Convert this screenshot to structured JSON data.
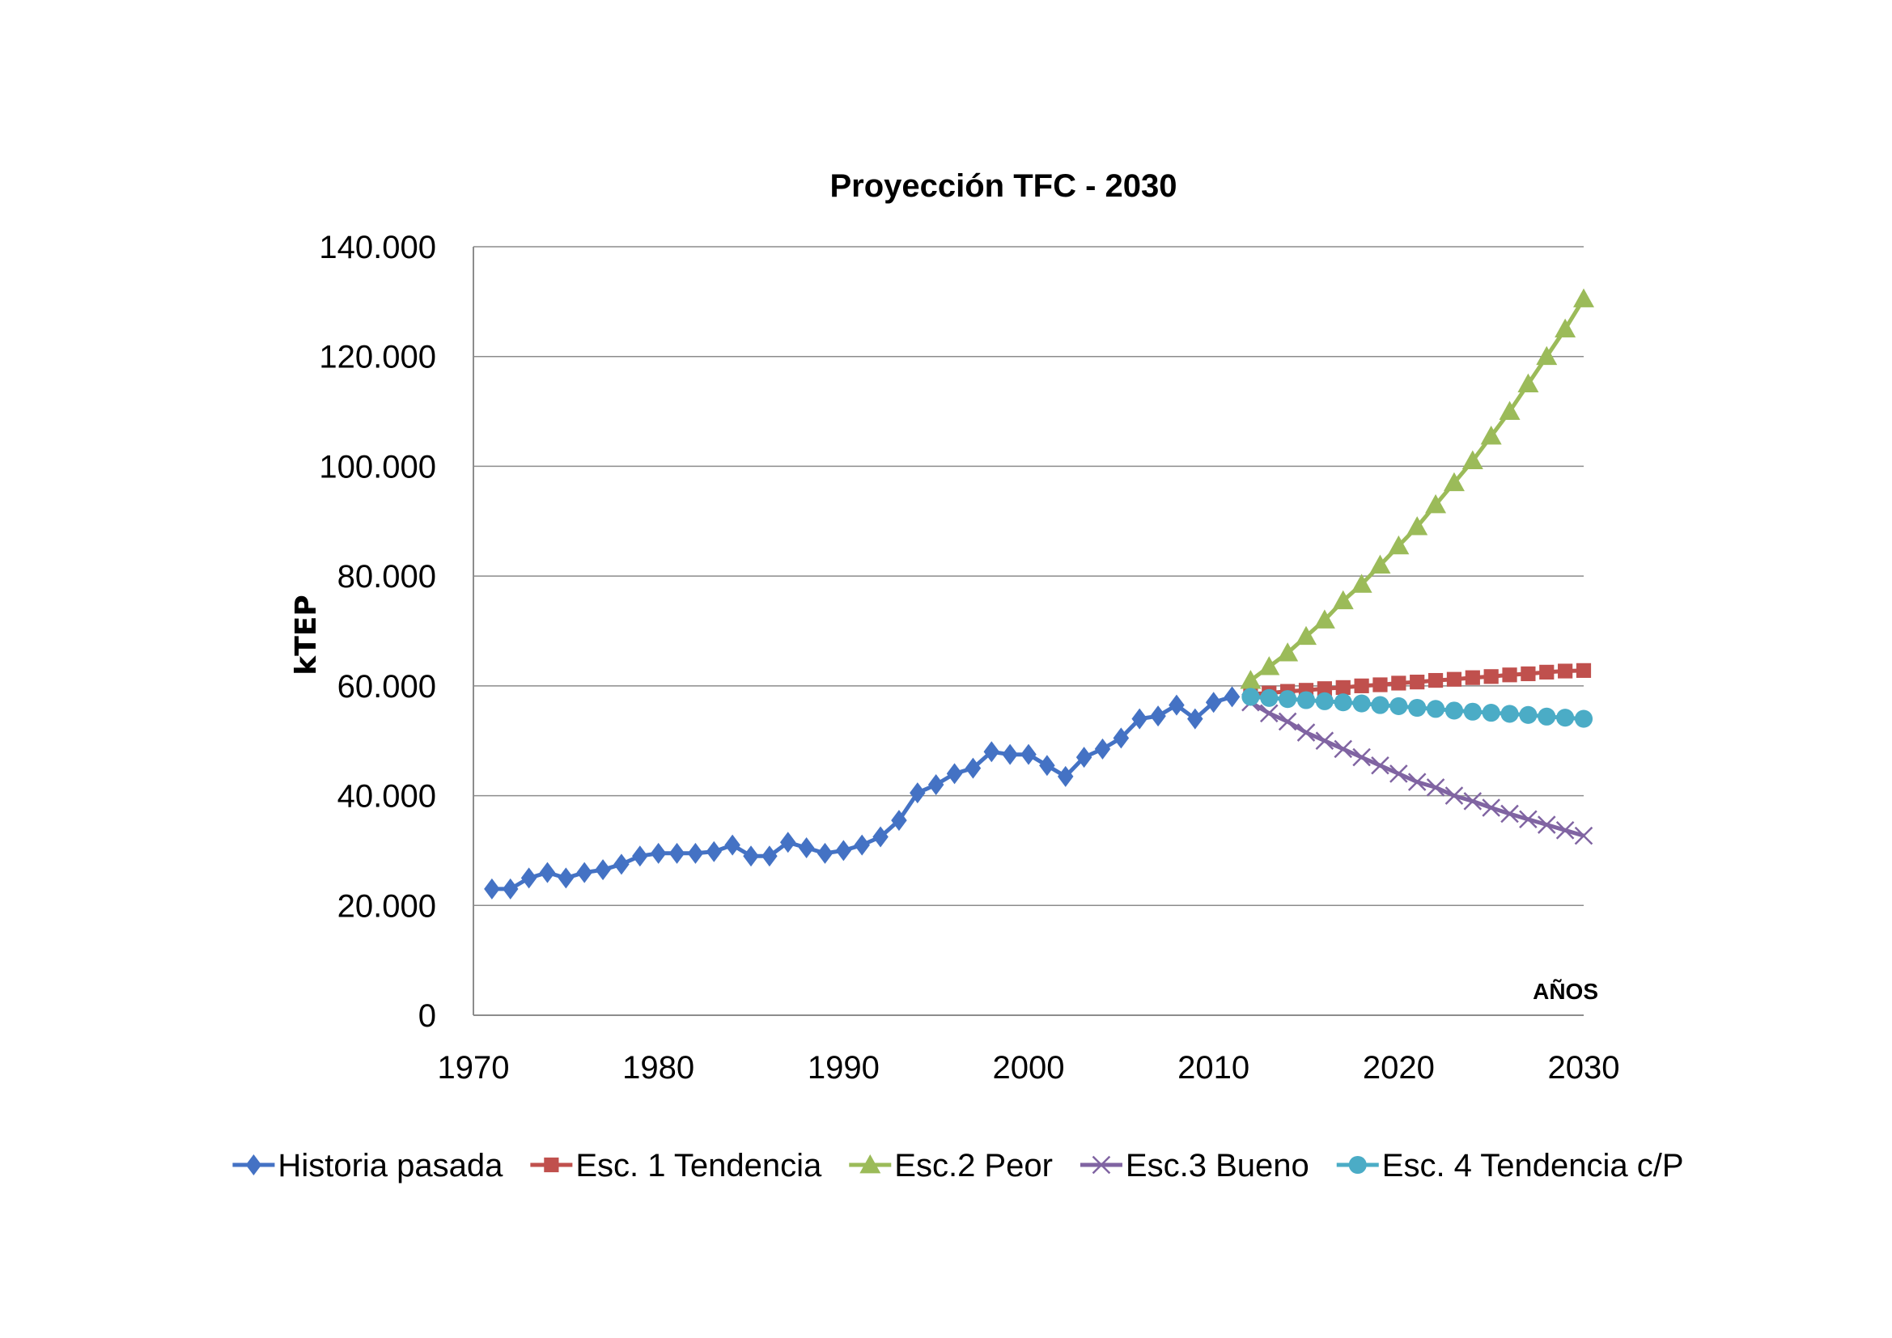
{
  "chart_data": {
    "type": "line",
    "title": "Proyección TFC - 2030",
    "xlabel": "AÑOS",
    "ylabel": "kTEP",
    "xlim": [
      1970,
      2030
    ],
    "ylim": [
      0,
      140000
    ],
    "x_ticks": [
      1970,
      1980,
      1990,
      2000,
      2010,
      2020,
      2030
    ],
    "y_ticks": [
      0,
      20000,
      40000,
      60000,
      80000,
      100000,
      120000,
      140000
    ],
    "y_tick_labels": [
      "0",
      "20.000",
      "40.000",
      "60.000",
      "80.000",
      "100.000",
      "120.000",
      "140.000"
    ],
    "x_tick_labels": [
      "1970",
      "1980",
      "1990",
      "2000",
      "2010",
      "2020",
      "2030"
    ],
    "grid": "horizontal",
    "legend_position": "bottom",
    "series": [
      {
        "name": "Historia pasada",
        "color": "#4472C4",
        "marker": "diamond",
        "x": [
          1971,
          1972,
          1973,
          1974,
          1975,
          1976,
          1977,
          1978,
          1979,
          1980,
          1981,
          1982,
          1983,
          1984,
          1985,
          1986,
          1987,
          1988,
          1989,
          1990,
          1991,
          1992,
          1993,
          1994,
          1995,
          1996,
          1997,
          1998,
          1999,
          2000,
          2001,
          2002,
          2003,
          2004,
          2005,
          2006,
          2007,
          2008,
          2009,
          2010,
          2011
        ],
        "y": [
          23000,
          23000,
          25000,
          26000,
          25000,
          26000,
          26500,
          27500,
          29000,
          29500,
          29500,
          29500,
          29800,
          31000,
          29000,
          29000,
          31500,
          30500,
          29500,
          30000,
          31000,
          32500,
          35500,
          40500,
          42000,
          44000,
          45000,
          48000,
          47500,
          47500,
          45500,
          43500,
          47000,
          48500,
          50500,
          54000,
          54500,
          56500,
          54000,
          57000,
          58000
        ]
      },
      {
        "name": "Esc. 1 Tendencia",
        "color": "#C0504D",
        "marker": "square",
        "x": [
          2012,
          2013,
          2014,
          2015,
          2016,
          2017,
          2018,
          2019,
          2020,
          2021,
          2022,
          2023,
          2024,
          2025,
          2026,
          2027,
          2028,
          2029,
          2030
        ],
        "y": [
          58500,
          58700,
          59000,
          59200,
          59500,
          59700,
          60000,
          60200,
          60500,
          60700,
          61000,
          61200,
          61500,
          61700,
          62000,
          62200,
          62500,
          62700,
          62800
        ]
      },
      {
        "name": "Esc.2 Peor",
        "color": "#9BBB59",
        "marker": "triangle",
        "x": [
          2012,
          2013,
          2014,
          2015,
          2016,
          2017,
          2018,
          2019,
          2020,
          2021,
          2022,
          2023,
          2024,
          2025,
          2026,
          2027,
          2028,
          2029,
          2030
        ],
        "y": [
          61000,
          63500,
          66000,
          69000,
          72000,
          75500,
          78500,
          82000,
          85500,
          89000,
          93000,
          97000,
          101000,
          105500,
          110000,
          115000,
          120000,
          125000,
          130500
        ]
      },
      {
        "name": "Esc.3 Bueno",
        "color": "#8064A2",
        "marker": "x",
        "x": [
          2012,
          2013,
          2014,
          2015,
          2016,
          2017,
          2018,
          2019,
          2020,
          2021,
          2022,
          2023,
          2024,
          2025,
          2026,
          2027,
          2028,
          2029,
          2030
        ],
        "y": [
          57000,
          55000,
          53500,
          51500,
          50000,
          48500,
          47000,
          45500,
          44000,
          42500,
          41500,
          40000,
          39000,
          37800,
          36700,
          35700,
          34700,
          33700,
          32700
        ]
      },
      {
        "name": "Esc. 4 Tendencia c/P",
        "color": "#4BACC6",
        "marker": "circle",
        "x": [
          2012,
          2013,
          2014,
          2015,
          2016,
          2017,
          2018,
          2019,
          2020,
          2021,
          2022,
          2023,
          2024,
          2025,
          2026,
          2027,
          2028,
          2029,
          2030
        ],
        "y": [
          58000,
          57800,
          57600,
          57400,
          57200,
          57000,
          56800,
          56500,
          56300,
          56000,
          55800,
          55500,
          55300,
          55100,
          54900,
          54700,
          54400,
          54200,
          54000
        ]
      }
    ]
  }
}
